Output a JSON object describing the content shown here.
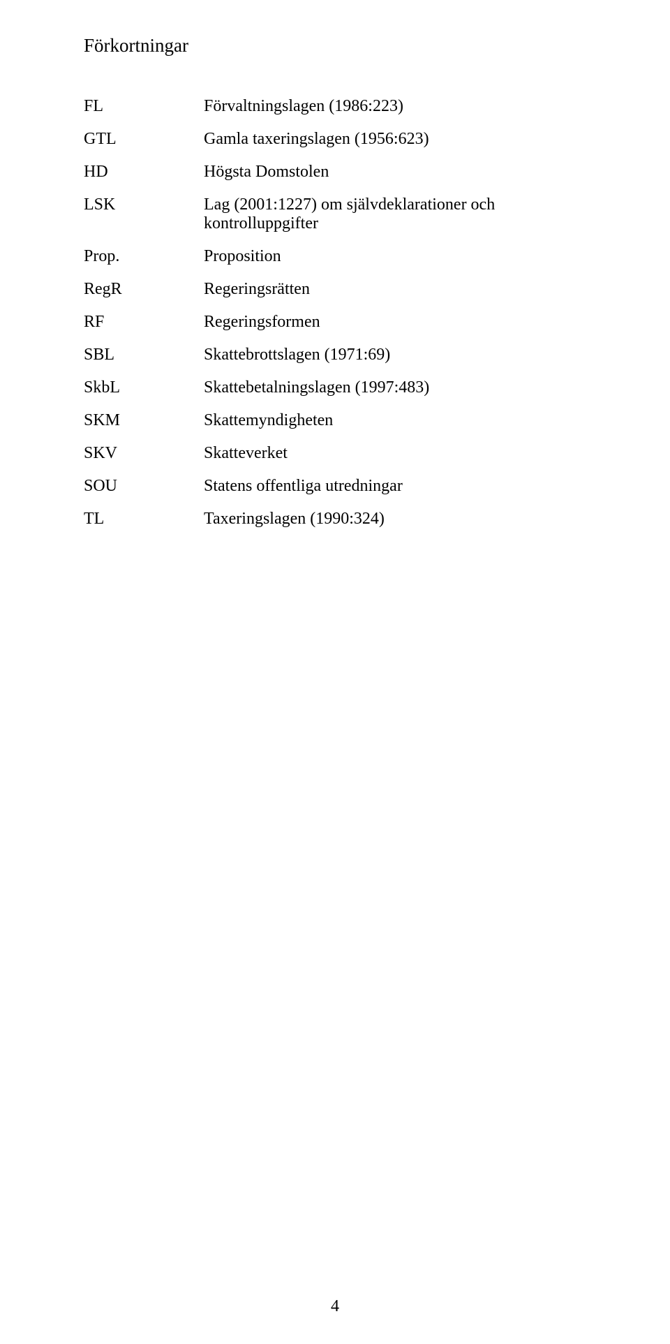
{
  "title": "Förkortningar",
  "rows": [
    {
      "key": "FL",
      "value": "Förvaltningslagen (1986:223)"
    },
    {
      "key": "GTL",
      "value": "Gamla taxeringslagen (1956:623)"
    },
    {
      "key": "HD",
      "value": "Högsta Domstolen"
    },
    {
      "key": "LSK",
      "value": "Lag (2001:1227) om självdeklarationer och kontrolluppgifter"
    },
    {
      "key": "Prop.",
      "value": "Proposition"
    },
    {
      "key": "RegR",
      "value": "Regeringsrätten"
    },
    {
      "key": "RF",
      "value": "Regeringsformen"
    },
    {
      "key": "SBL",
      "value": "Skattebrottslagen (1971:69)"
    },
    {
      "key": "SkbL",
      "value": "Skattebetalningslagen (1997:483)"
    },
    {
      "key": "SKM",
      "value": "Skattemyndigheten"
    },
    {
      "key": "SKV",
      "value": "Skatteverket"
    },
    {
      "key": "SOU",
      "value": "Statens offentliga utredningar"
    },
    {
      "key": "TL",
      "value": "Taxeringslagen (1990:324)"
    }
  ],
  "pageNumber": "4"
}
